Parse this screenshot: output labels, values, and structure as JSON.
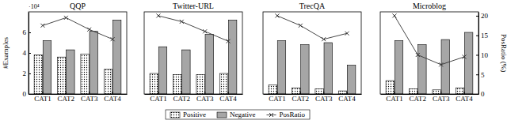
{
  "chart_data": [
    {
      "type": "bar",
      "title": "QQP",
      "y_label": "#Examples",
      "annotations": [
        "·10⁴"
      ],
      "categories": [
        "CAT1",
        "CAT2",
        "CAT3",
        "CAT4"
      ],
      "ylim": [
        0,
        8
      ],
      "yticks": [
        0,
        2,
        4,
        6
      ],
      "y2lim": [
        0,
        21
      ],
      "series": [
        {
          "name": "Positive",
          "type": "bar",
          "color": "#000000",
          "marker": "dots",
          "values": [
            3.8,
            3.6,
            3.9,
            2.4
          ]
        },
        {
          "name": "Negative",
          "type": "bar",
          "color": "#a6a6a6",
          "values": [
            5.2,
            4.3,
            6.1,
            7.2
          ]
        },
        {
          "name": "PosRatio",
          "type": "line",
          "axis": "y2",
          "color": "#333333",
          "marker": "x",
          "values": [
            17.5,
            19.5,
            16.5,
            14
          ]
        }
      ]
    },
    {
      "type": "bar",
      "title": "Twitter-URL",
      "categories": [
        "CAT1",
        "CAT2",
        "CAT3",
        "CAT4"
      ],
      "ylim": [
        0,
        8
      ],
      "y2lim": [
        0,
        21
      ],
      "series": [
        {
          "name": "Positive",
          "type": "bar",
          "color": "#000000",
          "marker": "dots",
          "values": [
            2.0,
            1.9,
            1.9,
            2.0
          ]
        },
        {
          "name": "Negative",
          "type": "bar",
          "color": "#a6a6a6",
          "values": [
            4.6,
            4.3,
            5.8,
            7.2
          ]
        },
        {
          "name": "PosRatio",
          "type": "line",
          "axis": "y2",
          "color": "#333333",
          "marker": "x",
          "values": [
            20,
            18.5,
            16,
            13.5
          ]
        }
      ]
    },
    {
      "type": "bar",
      "title": "TrecQA",
      "categories": [
        "CAT1",
        "CAT2",
        "CAT3",
        "CAT4"
      ],
      "ylim": [
        0,
        8
      ],
      "y2lim": [
        0,
        21
      ],
      "series": [
        {
          "name": "Positive",
          "type": "bar",
          "color": "#000000",
          "marker": "dots",
          "values": [
            0.9,
            0.6,
            0.5,
            0.3
          ]
        },
        {
          "name": "Negative",
          "type": "bar",
          "color": "#a6a6a6",
          "values": [
            5.2,
            4.8,
            5.0,
            2.8
          ]
        },
        {
          "name": "PosRatio",
          "type": "line",
          "axis": "y2",
          "color": "#333333",
          "marker": "x",
          "values": [
            20,
            17.5,
            14,
            15.5
          ]
        }
      ]
    },
    {
      "type": "bar",
      "title": "Microblog",
      "y2_label": "PosRatio (%)",
      "categories": [
        "CAT1",
        "CAT2",
        "CAT3",
        "CAT4"
      ],
      "ylim": [
        0,
        8
      ],
      "y2lim": [
        0,
        21
      ],
      "y2ticks": [
        0,
        5,
        10,
        15,
        20
      ],
      "series": [
        {
          "name": "Positive",
          "type": "bar",
          "color": "#000000",
          "marker": "dots",
          "values": [
            1.3,
            0.5,
            0.4,
            0.6
          ]
        },
        {
          "name": "Negative",
          "type": "bar",
          "color": "#a6a6a6",
          "values": [
            5.2,
            4.8,
            5.3,
            6.0
          ]
        },
        {
          "name": "PosRatio",
          "type": "line",
          "axis": "y2",
          "color": "#333333",
          "marker": "x",
          "values": [
            20,
            10,
            7.5,
            9.5
          ]
        }
      ]
    }
  ]
}
